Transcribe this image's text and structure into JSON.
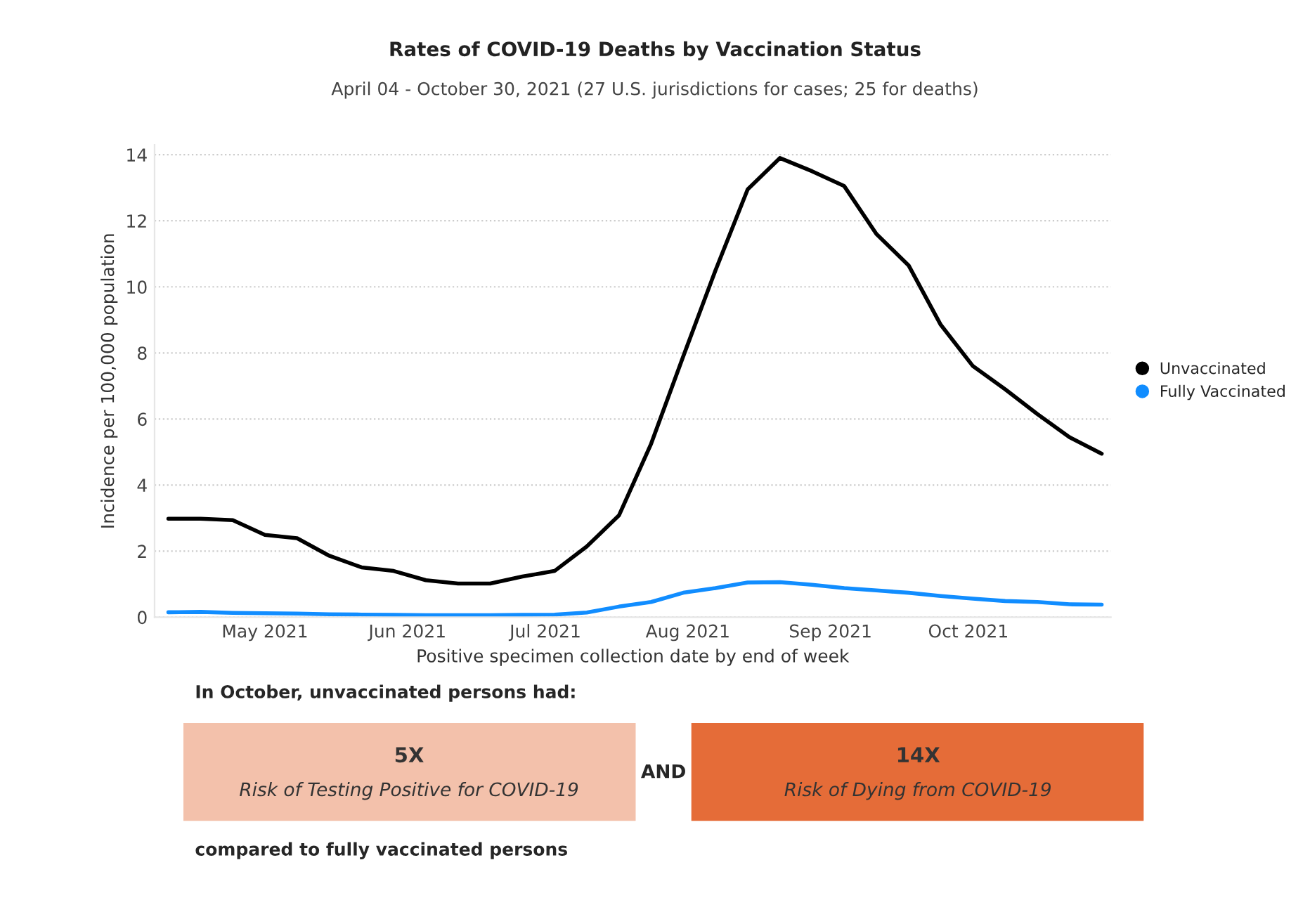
{
  "chart_data": [
    {
      "type": "line",
      "title": "Rates of COVID-19 Deaths by Vaccination Status",
      "subtitle": "April 04 - October 30, 2021 (27 U.S. jurisdictions for cases; 25 for deaths)",
      "xlabel": "Positive specimen collection date by end of week",
      "ylabel": "Incidence per 100,000 population",
      "x": [
        "2021-04-10",
        "2021-04-17",
        "2021-04-24",
        "2021-05-01",
        "2021-05-08",
        "2021-05-15",
        "2021-05-22",
        "2021-05-29",
        "2021-06-05",
        "2021-06-12",
        "2021-06-19",
        "2021-06-26",
        "2021-07-03",
        "2021-07-10",
        "2021-07-17",
        "2021-07-24",
        "2021-07-31",
        "2021-08-07",
        "2021-08-14",
        "2021-08-21",
        "2021-08-28",
        "2021-09-04",
        "2021-09-11",
        "2021-09-18",
        "2021-09-25",
        "2021-10-02",
        "2021-10-09",
        "2021-10-16",
        "2021-10-23",
        "2021-10-30"
      ],
      "series": [
        {
          "name": "Unvaccinated",
          "color": "#000000",
          "values": [
            2.98,
            2.98,
            2.94,
            2.49,
            2.39,
            1.86,
            1.51,
            1.4,
            1.12,
            1.02,
            1.02,
            1.23,
            1.4,
            2.14,
            3.08,
            5.25,
            7.9,
            10.5,
            12.95,
            13.9,
            13.5,
            13.05,
            11.6,
            10.65,
            8.85,
            7.6,
            6.9,
            6.15,
            5.45,
            4.95
          ]
        },
        {
          "name": "Fully Vaccinated",
          "color": "#118dff",
          "values": [
            0.15,
            0.16,
            0.13,
            0.12,
            0.11,
            0.09,
            0.08,
            0.07,
            0.06,
            0.06,
            0.06,
            0.07,
            0.08,
            0.14,
            0.32,
            0.46,
            0.74,
            0.88,
            1.05,
            1.06,
            0.98,
            0.88,
            0.81,
            0.74,
            0.64,
            0.56,
            0.49,
            0.46,
            0.39,
            0.38
          ]
        }
      ],
      "xlim": [
        "2021-04-07",
        "2021-11-01"
      ],
      "xticks": [
        {
          "value": "2021-05-01",
          "label": "May 2021"
        },
        {
          "value": "2021-06-01",
          "label": "Jun 2021"
        },
        {
          "value": "2021-07-01",
          "label": "Jul 2021"
        },
        {
          "value": "2021-08-01",
          "label": "Aug 2021"
        },
        {
          "value": "2021-09-01",
          "label": "Sep 2021"
        },
        {
          "value": "2021-10-01",
          "label": "Oct 2021"
        }
      ],
      "ylim": [
        0,
        14.3
      ],
      "yticks": [
        0,
        2,
        4,
        6,
        8,
        10,
        12,
        14
      ],
      "grid": "y",
      "legend": "right",
      "line_style": "solid"
    },
    {
      "type": "other",
      "annotations": [
        "In October, unvaccinated persons had:",
        "5X",
        "Risk of Testing Positive for COVID-19",
        "AND",
        "14X",
        "Risk of Dying from COVID-19",
        "compared to fully vaccinated persons"
      ],
      "colors": [
        "#f3c1ab",
        "#e56c38"
      ]
    }
  ]
}
